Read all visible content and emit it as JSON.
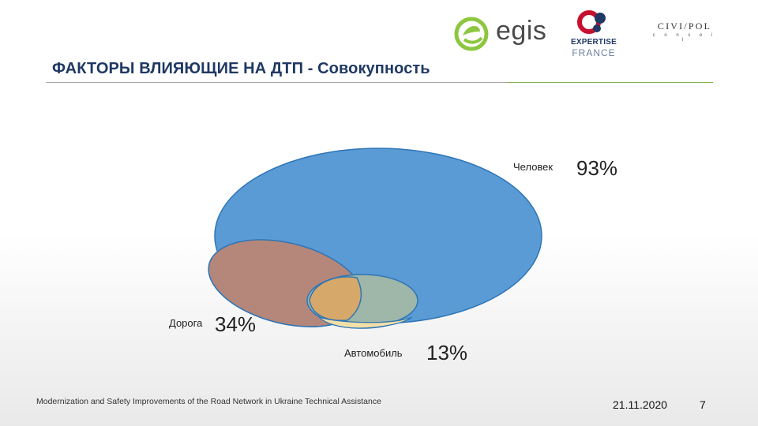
{
  "header": {
    "title": "ФАКТОРЫ ВЛИЯЮЩИЕ НА ДТП - Совокупность"
  },
  "logos": {
    "egis": {
      "text": "egis",
      "icon": "egis-leaf-e-icon",
      "color": "#8dc63f"
    },
    "expertise_france": {
      "line1": "EXPERTISE",
      "line2": "FRANCE",
      "icon": "expertise-france-emblem-icon"
    },
    "civipol": {
      "text": "CIVI/POL",
      "subtitle": "c o n s e i l",
      "icon": "civipol-logo-icon"
    }
  },
  "diagram": {
    "sets": [
      {
        "name": "Человек",
        "value": "93%",
        "color": "#5b9bd5"
      },
      {
        "name": "Дорога",
        "value": "34%",
        "color": "#ed7d31"
      },
      {
        "name": "Автомобиль",
        "value": "13%",
        "color": "#f2dfa7"
      }
    ]
  },
  "footer": {
    "text": "Modernization and Safety Improvements of the Road Network in Ukraine Technical Assistance",
    "date": "21.11.2020",
    "page": "7"
  }
}
